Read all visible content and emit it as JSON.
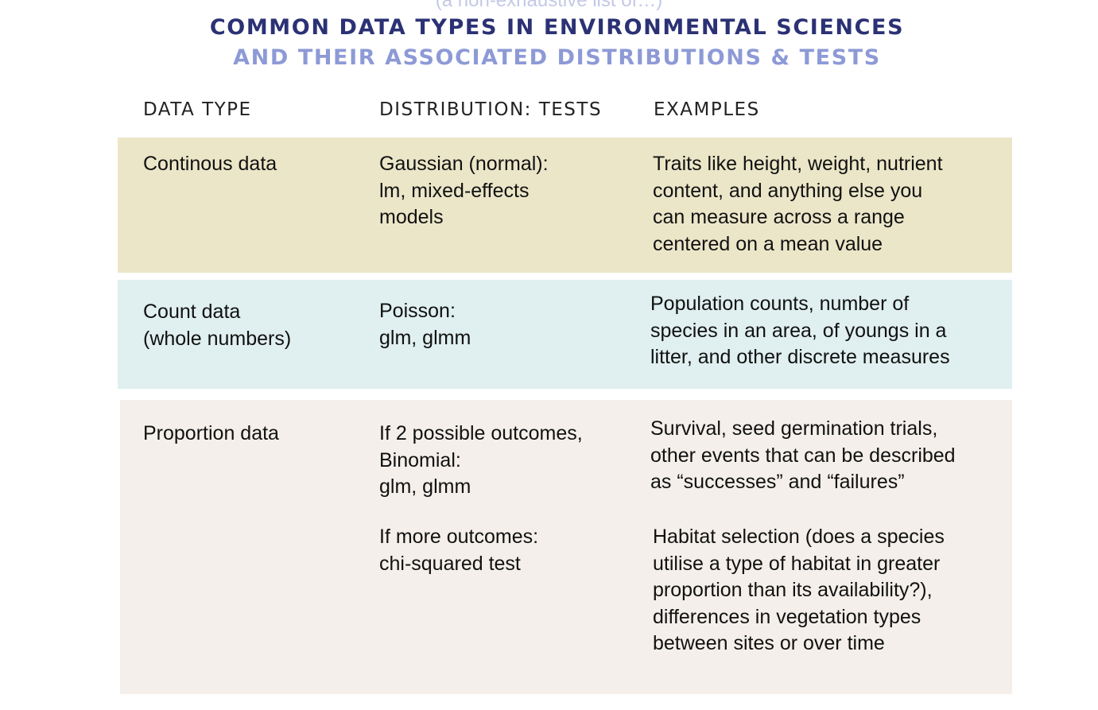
{
  "header": {
    "subtitle_top": "(a non-exhaustive list of…)",
    "title_line1": "COMMON DATA TYPES IN ENVIRONMENTAL SCIENCES",
    "title_line2": "AND THEIR ASSOCIATED DISTRIBUTIONS & TESTS"
  },
  "columns": {
    "data_type": "DATA TYPE",
    "distribution": "DISTRIBUTION: TESTS",
    "examples": "EXAMPLES"
  },
  "colors": {
    "title_dark": "#2b3174",
    "title_light": "#8d9ad6",
    "row1_bg": "#ebe6c8",
    "row2_bg": "#e0efef",
    "row3_bg": "#f4efea"
  },
  "rows": [
    {
      "type_lines": [
        "Continous data"
      ],
      "dist_lines": [
        "Gaussian (normal):",
        "lm, mixed-effects",
        "models"
      ],
      "example_lines": [
        "Traits like height, weight, nutrient",
        "content, and anything else you",
        "can measure across a range",
        "centered on a mean value"
      ]
    },
    {
      "type_lines": [
        "Count data",
        "(whole numbers)"
      ],
      "dist_lines": [
        "Poisson:",
        "glm, glmm"
      ],
      "example_lines": [
        "Population counts, number of",
        "species in an area, of youngs in a",
        "litter, and other discrete measures"
      ]
    },
    {
      "type_lines": [
        "Proportion data"
      ],
      "dist_lines": [
        "If 2 possible outcomes,",
        "Binomial:",
        "glm, glmm"
      ],
      "example_lines": [
        "Survival, seed germination trials,",
        "other events that can be described",
        "as “successes” and “failures”"
      ],
      "dist2_lines": [
        "If more outcomes:",
        "chi-squared test"
      ],
      "example2_lines": [
        "Habitat selection (does a species",
        "utilise a type of habitat in greater",
        "proportion than its availability?),",
        "differences in vegetation types",
        "between sites or over time"
      ]
    }
  ]
}
